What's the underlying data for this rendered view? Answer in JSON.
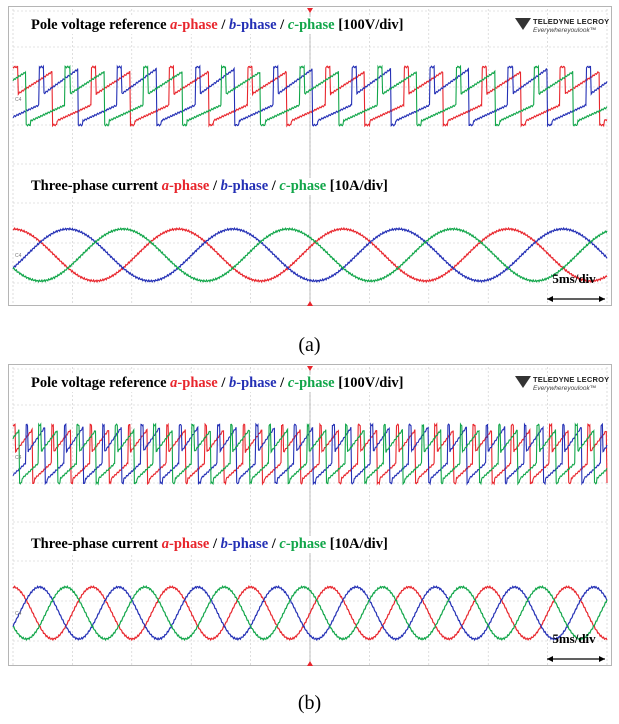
{
  "panels": [
    {
      "caption": "(a)",
      "voltage": {
        "title_prefix": "Pole voltage reference ",
        "phases": [
          "a",
          "b",
          "c"
        ],
        "phase_suffix": "-phase",
        "separator": " / ",
        "scale": "[100V/div]"
      },
      "current": {
        "title_prefix": "Three-phase current ",
        "phases": [
          "a",
          "b",
          "c"
        ],
        "phase_suffix": "-phase",
        "separator": " / ",
        "scale": "[10A/div]"
      },
      "timebase": "5ms/div",
      "current_cycles": 3.6,
      "voltage_periods": 7.6
    },
    {
      "caption": "(b)",
      "voltage": {
        "title_prefix": "Pole voltage reference ",
        "phases": [
          "a",
          "b",
          "c"
        ],
        "phase_suffix": "-phase",
        "separator": " / ",
        "scale": "[100V/div]"
      },
      "current": {
        "title_prefix": "Three-phase current ",
        "phases": [
          "a",
          "b",
          "c"
        ],
        "phase_suffix": "-phase",
        "separator": " / ",
        "scale": "[10A/div]"
      },
      "timebase": "5ms/div",
      "current_cycles": 7.5,
      "voltage_periods": 15.5
    }
  ],
  "logo": {
    "brand": "TELEDYNE LECROY",
    "tagline": "Everywhereyoulook™"
  },
  "colors": {
    "a": "#e8262d",
    "b": "#2430b5",
    "c": "#12a64a",
    "grid": "#c8c8c8",
    "marker": "#e8262d"
  },
  "chart_data": [
    {
      "type": "line",
      "title": "Pole voltage reference a-phase / b-phase / c-phase [100V/div]",
      "series": [
        {
          "name": "a-phase"
        },
        {
          "name": "b-phase"
        },
        {
          "name": "c-phase"
        }
      ],
      "unit": "100V/div",
      "time_base": "5ms/div",
      "panel": "(a)"
    },
    {
      "type": "line",
      "title": "Three-phase current a-phase / b-phase / c-phase [10A/div]",
      "series": [
        {
          "name": "a-phase"
        },
        {
          "name": "b-phase"
        },
        {
          "name": "c-phase"
        }
      ],
      "unit": "10A/div",
      "time_base": "5ms/div",
      "panel": "(a)"
    },
    {
      "type": "line",
      "title": "Pole voltage reference a-phase / b-phase / c-phase [100V/div]",
      "series": [
        {
          "name": "a-phase"
        },
        {
          "name": "b-phase"
        },
        {
          "name": "c-phase"
        }
      ],
      "unit": "100V/div",
      "time_base": "5ms/div",
      "panel": "(b)"
    },
    {
      "type": "line",
      "title": "Three-phase current a-phase / b-phase / c-phase [10A/div]",
      "series": [
        {
          "name": "a-phase"
        },
        {
          "name": "b-phase"
        },
        {
          "name": "c-phase"
        }
      ],
      "unit": "10A/div",
      "time_base": "5ms/div",
      "panel": "(b)"
    }
  ]
}
